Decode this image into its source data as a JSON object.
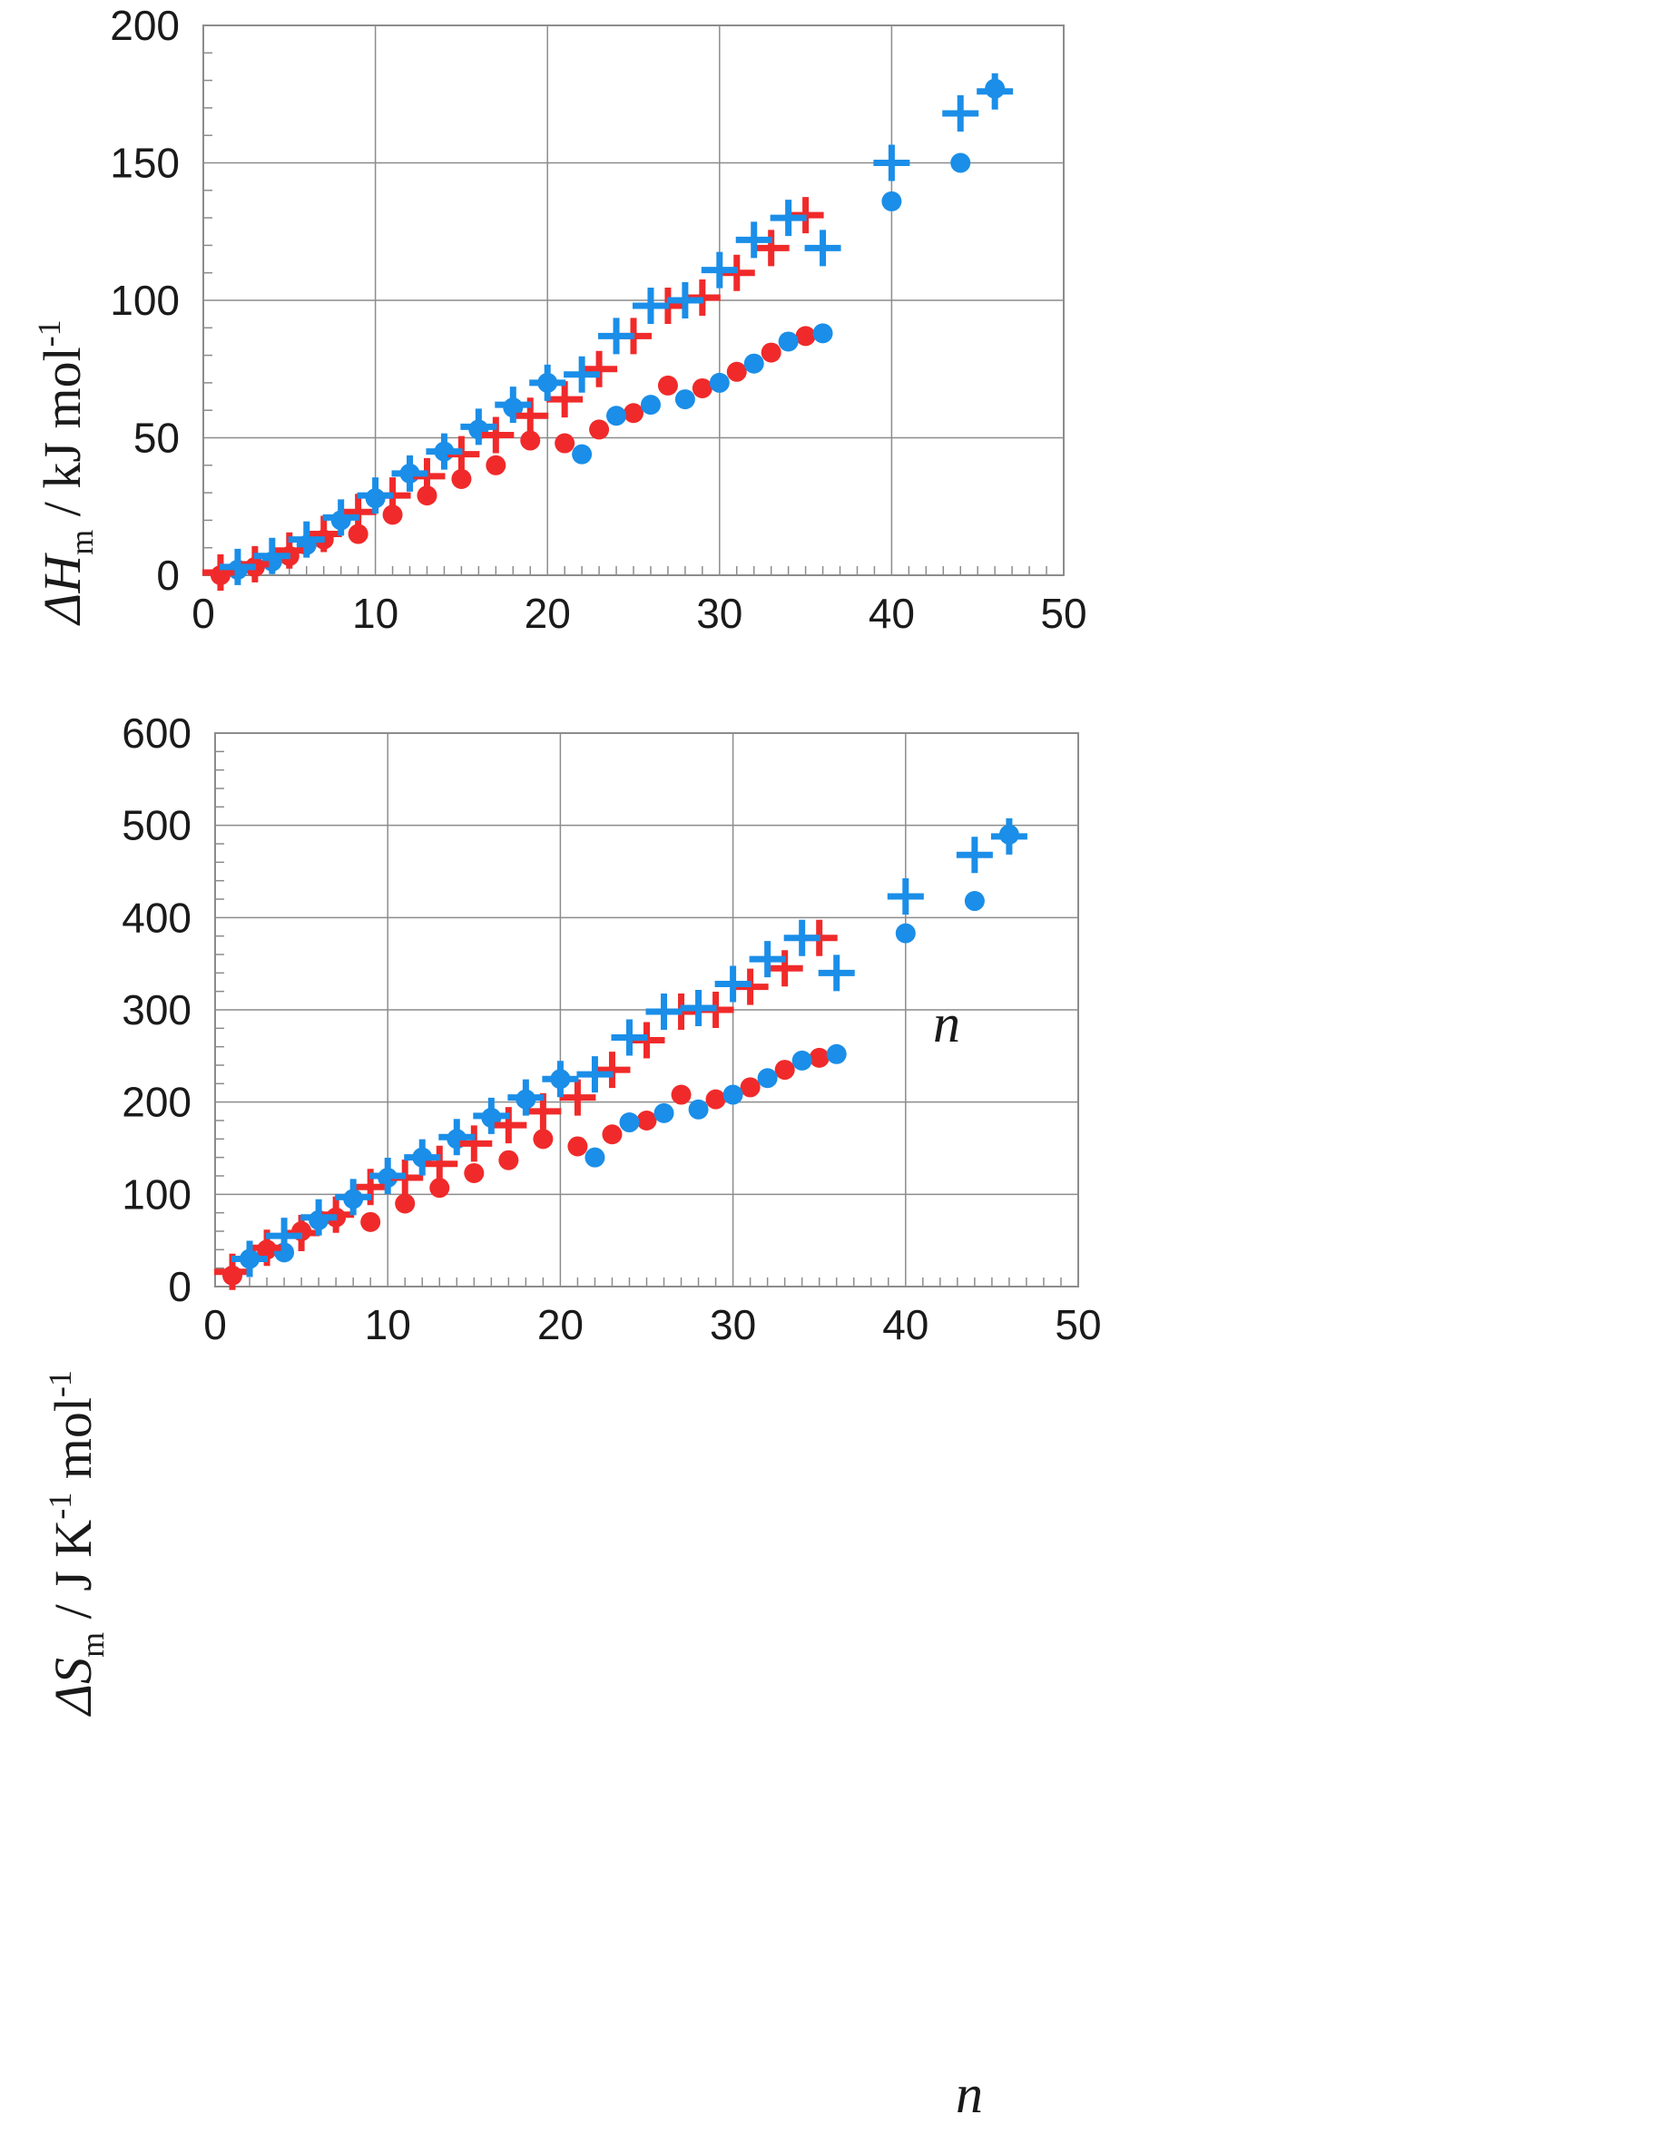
{
  "colors": {
    "red": "#f02a2a",
    "blue": "#1a8ee8"
  },
  "chart_data": [
    {
      "type": "scatter",
      "title": "",
      "xlabel": "n",
      "ylabel_parts": {
        "prefix": "ΔH",
        "sub": "m",
        "suffix": " / kJ mol",
        "sup": "-1"
      },
      "xlim": [
        0,
        50
      ],
      "ylim": [
        0,
        200
      ],
      "xticks": [
        "0",
        "10",
        "20",
        "30",
        "40",
        "50"
      ],
      "yticks": [
        "0",
        "50",
        "100",
        "150",
        "200"
      ],
      "grid": true,
      "series": [
        {
          "name": "red-circle",
          "marker": "circle",
          "color": "red",
          "x": [
            1,
            3,
            5,
            7,
            9,
            11,
            13,
            15,
            17,
            19,
            21,
            23,
            25,
            27,
            29,
            31,
            33,
            35
          ],
          "y": [
            0,
            3,
            7,
            13,
            15,
            22,
            29,
            35,
            40,
            49,
            48,
            53,
            59,
            69,
            68,
            74,
            81,
            87
          ]
        },
        {
          "name": "blue-circle",
          "marker": "circle",
          "color": "blue",
          "x": [
            2,
            4,
            6,
            8,
            10,
            12,
            14,
            16,
            18,
            20,
            22,
            24,
            26,
            28,
            30,
            32,
            34,
            36,
            40,
            44,
            46
          ],
          "y": [
            2,
            5,
            11,
            20,
            28,
            37,
            45,
            53,
            61,
            70,
            44,
            58,
            62,
            64,
            70,
            77,
            85,
            88,
            136,
            150,
            177
          ]
        },
        {
          "name": "red-plus",
          "marker": "plus",
          "color": "red",
          "x": [
            1,
            3,
            5,
            7,
            9,
            11,
            13,
            15,
            17,
            19,
            21,
            23,
            25,
            27,
            29,
            31,
            33,
            35
          ],
          "y": [
            1,
            4,
            9,
            15,
            23,
            29,
            36,
            44,
            51,
            58,
            64,
            75,
            87,
            98,
            101,
            110,
            119,
            131
          ]
        },
        {
          "name": "blue-plus",
          "marker": "plus",
          "color": "blue",
          "x": [
            2,
            4,
            6,
            8,
            10,
            12,
            14,
            16,
            18,
            20,
            22,
            24,
            26,
            28,
            30,
            32,
            34,
            36,
            40,
            44,
            46
          ],
          "y": [
            3,
            7,
            13,
            21,
            29,
            37,
            45,
            54,
            62,
            70,
            73,
            87,
            98,
            100,
            111,
            122,
            130,
            119,
            150,
            168,
            176
          ]
        }
      ]
    },
    {
      "type": "scatter",
      "title": "",
      "xlabel": "n",
      "ylabel_parts": {
        "prefix": "ΔS",
        "sub": "m",
        "mid": " / J K",
        "sup1": "-1",
        "suffix": " mol",
        "sup2": "-1"
      },
      "xlim": [
        0,
        50
      ],
      "ylim": [
        0,
        600
      ],
      "xticks": [
        "0",
        "10",
        "20",
        "30",
        "40",
        "50"
      ],
      "yticks": [
        "0",
        "100",
        "200",
        "300",
        "400",
        "500",
        "600"
      ],
      "grid": true,
      "series": [
        {
          "name": "red-circle",
          "marker": "circle",
          "color": "red",
          "x": [
            1,
            3,
            5,
            7,
            9,
            11,
            13,
            15,
            17,
            19,
            21,
            23,
            25,
            27,
            29,
            31,
            33,
            35
          ],
          "y": [
            12,
            40,
            60,
            75,
            70,
            90,
            107,
            123,
            137,
            160,
            152,
            165,
            180,
            208,
            203,
            216,
            235,
            248
          ]
        },
        {
          "name": "blue-circle",
          "marker": "circle",
          "color": "blue",
          "x": [
            2,
            4,
            6,
            8,
            10,
            12,
            14,
            16,
            18,
            20,
            22,
            24,
            26,
            28,
            30,
            32,
            34,
            36,
            40,
            44,
            46
          ],
          "y": [
            30,
            37,
            72,
            95,
            118,
            140,
            160,
            183,
            203,
            225,
            140,
            178,
            188,
            192,
            208,
            226,
            245,
            252,
            383,
            418,
            490
          ]
        },
        {
          "name": "red-plus",
          "marker": "plus",
          "color": "red",
          "x": [
            1,
            3,
            5,
            7,
            9,
            11,
            13,
            15,
            17,
            19,
            21,
            23,
            25,
            27,
            29,
            31,
            33,
            35
          ],
          "y": [
            16,
            42,
            58,
            78,
            108,
            118,
            133,
            155,
            175,
            190,
            205,
            235,
            267,
            298,
            300,
            325,
            345,
            378
          ]
        },
        {
          "name": "blue-plus",
          "marker": "plus",
          "color": "blue",
          "x": [
            2,
            4,
            6,
            8,
            10,
            12,
            14,
            16,
            18,
            20,
            22,
            24,
            26,
            28,
            30,
            32,
            34,
            36,
            40,
            44,
            46
          ],
          "y": [
            30,
            55,
            75,
            97,
            120,
            140,
            162,
            185,
            205,
            225,
            230,
            270,
            298,
            302,
            328,
            355,
            378,
            340,
            423,
            468,
            488
          ]
        }
      ]
    }
  ]
}
